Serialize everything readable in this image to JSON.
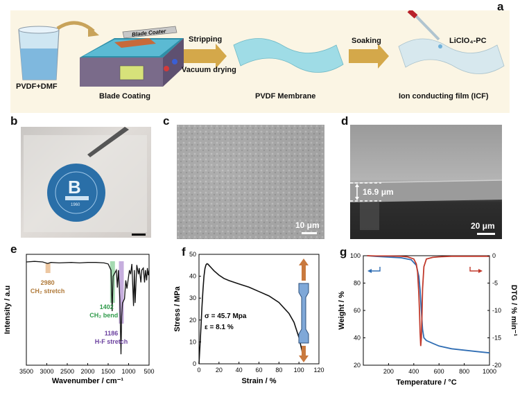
{
  "panels": {
    "a": {
      "label": "a",
      "items": [
        {
          "label": "PVDF+DMF"
        },
        {
          "label": "Blade Coating"
        },
        {
          "label": "PVDF Membrane"
        },
        {
          "label": "Ion conducting film (ICF)"
        }
      ],
      "coater_label": "Blade Coater",
      "arrow1_top": "Stripping",
      "arrow1_bottom": "Vacuum drying",
      "arrow2_top": "Soaking",
      "licl_label": "LiClO₄-PC"
    },
    "b": {
      "label": "b",
      "logo_year": "1960"
    },
    "c": {
      "label": "c",
      "scale": "10 μm"
    },
    "d": {
      "label": "d",
      "scale": "20 μm",
      "thickness": "16.9 μm"
    },
    "e": {
      "label": "e"
    },
    "f": {
      "label": "f"
    },
    "g": {
      "label": "g"
    }
  },
  "chart_data": [
    {
      "id": "e",
      "type": "line",
      "xlabel": "Wavenumber / cm⁻¹",
      "ylabel": "Intensity / a.u",
      "xlim": [
        3500,
        500
      ],
      "x_ticks": [
        "3500",
        "3000",
        "2500",
        "2000",
        "1500",
        "1000",
        "500"
      ],
      "annotations": [
        {
          "wavenumber": "2980",
          "text": "CH₂ stretch",
          "color": "#b07a3a"
        },
        {
          "wavenumber": "1402",
          "text": "CH₂ bend",
          "color": "#2f9a4a"
        },
        {
          "wavenumber": "1186",
          "text": "H-F stretch",
          "color": "#6a3f9e"
        }
      ],
      "series": [
        {
          "x": [
            3500,
            3300,
            3100,
            2980,
            2900,
            2700,
            2400,
            2200,
            2000,
            1800,
            1600,
            1500,
            1430,
            1402,
            1380,
            1300,
            1275,
            1250,
            1215,
            1186,
            1170,
            1150,
            1100,
            1070,
            1040,
            980,
            950,
            920,
            880,
            860,
            840,
            800,
            760,
            740,
            700,
            680,
            640,
            610,
            590,
            560,
            540,
            520,
            500
          ],
          "y": [
            0.98,
            0.985,
            0.98,
            0.965,
            0.975,
            0.97,
            0.975,
            0.97,
            0.975,
            0.975,
            0.97,
            0.96,
            0.9,
            0.5,
            0.84,
            0.9,
            0.73,
            0.9,
            0.62,
            0.08,
            0.45,
            0.58,
            0.62,
            0.8,
            0.72,
            0.9,
            0.86,
            0.96,
            0.55,
            0.9,
            0.58,
            0.95,
            0.86,
            0.92,
            0.78,
            0.9,
            0.92,
            0.78,
            0.9,
            0.8,
            0.92,
            0.85,
            0.9
          ]
        }
      ]
    },
    {
      "id": "f",
      "type": "line",
      "xlabel": "Strain / %",
      "ylabel": "Stress / MPa",
      "xlim": [
        0,
        120
      ],
      "ylim": [
        0,
        50
      ],
      "x_ticks": [
        "0",
        "20",
        "40",
        "60",
        "80",
        "100",
        "120"
      ],
      "y_ticks": [
        "0",
        "10",
        "20",
        "30",
        "40",
        "50"
      ],
      "annotations": [
        {
          "text": "σ = 45.7 Mpa"
        },
        {
          "text": "ε = 8.1 %"
        }
      ],
      "series": [
        {
          "x": [
            0,
            1,
            2,
            3,
            4,
            5,
            6,
            7,
            8,
            9,
            10,
            12,
            15,
            20,
            25,
            30,
            40,
            50,
            60,
            70,
            80,
            90,
            95,
            100,
            103,
            104,
            105
          ],
          "y": [
            0,
            8,
            17,
            26,
            34,
            40,
            43.5,
            45.2,
            45.7,
            45.5,
            45,
            44,
            42.5,
            40.5,
            39,
            38,
            36.5,
            35,
            33,
            31,
            28,
            23,
            19,
            12,
            6,
            3,
            2
          ]
        }
      ]
    },
    {
      "id": "g",
      "type": "line",
      "xlabel": "Temperature / °C",
      "ylabel": "Weight / %",
      "y2label": "DTG / % min⁻¹",
      "xlim": [
        0,
        1000
      ],
      "ylim": [
        20,
        100
      ],
      "y2lim": [
        -20,
        0
      ],
      "x_ticks": [
        "200",
        "400",
        "600",
        "800",
        "1000"
      ],
      "y_ticks": [
        "20",
        "40",
        "60",
        "80",
        "100"
      ],
      "y2_ticks": [
        "0",
        "-5",
        "-10",
        "-15",
        "-20"
      ],
      "series": [
        {
          "name": "Weight",
          "color": "#2f6db3",
          "axis": "left",
          "x": [
            30,
            100,
            200,
            300,
            380,
            420,
            440,
            450,
            460,
            470,
            480,
            500,
            550,
            600,
            700,
            800,
            900,
            1000
          ],
          "y": [
            100,
            99.5,
            99,
            98.5,
            97,
            93,
            85,
            75,
            60,
            46,
            40,
            38,
            36,
            34,
            32,
            31,
            30,
            29
          ]
        },
        {
          "name": "DTG",
          "color": "#c0392b",
          "axis": "right",
          "x": [
            30,
            100,
            200,
            300,
            350,
            400,
            420,
            430,
            440,
            445,
            450,
            455,
            460,
            465,
            470,
            480,
            500,
            550,
            600,
            700,
            800,
            900,
            1000
          ],
          "y": [
            0,
            -0.05,
            -0.05,
            -0.1,
            -0.2,
            -0.6,
            -1.5,
            -3,
            -7,
            -10,
            -14,
            -16.5,
            -15,
            -11,
            -6,
            -2,
            -0.6,
            -0.3,
            -0.2,
            -0.1,
            -0.1,
            -0.1,
            -0.1
          ]
        }
      ]
    }
  ]
}
